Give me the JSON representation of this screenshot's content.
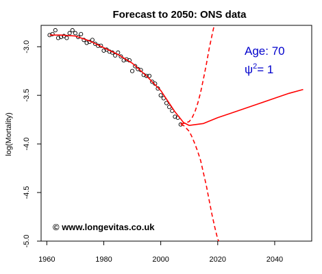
{
  "chart_data": {
    "type": "line",
    "title": "Forecast to 2050: ONS data",
    "xlabel": "",
    "ylabel": "log(Mortality)",
    "xlim": [
      1958,
      2053
    ],
    "ylim": [
      -5.0,
      -2.78
    ],
    "x_ticks": [
      1960,
      1980,
      2000,
      2020,
      2040
    ],
    "y_ticks": [
      -3.0,
      -3.5,
      -4.0,
      -4.5,
      -5.0
    ],
    "y_tick_labels": [
      "-3.0",
      "-3.5",
      "-4.0",
      "-4.5",
      "-5.0"
    ],
    "grid": false,
    "annotations": {
      "age_label": "Age: 70",
      "psi_symbol": "ψ",
      "psi_exponent": "2",
      "psi_value": "= 1",
      "credit": "© www.longevitas.co.uk"
    },
    "series": [
      {
        "style": "points",
        "x": [
          1961,
          1962,
          1963,
          1964,
          1965,
          1966,
          1967,
          1968,
          1969,
          1970,
          1971,
          1972,
          1973,
          1974,
          1975,
          1976,
          1977,
          1978,
          1979,
          1980,
          1981,
          1982,
          1983,
          1984,
          1985,
          1986,
          1987,
          1988,
          1989,
          1990,
          1991,
          1992,
          1993,
          1994,
          1995,
          1996,
          1997,
          1998,
          1999,
          2000,
          2001,
          2002,
          2003,
          2004,
          2005,
          2006,
          2007
        ],
        "y": [
          -2.88,
          -2.87,
          -2.83,
          -2.91,
          -2.9,
          -2.89,
          -2.91,
          -2.86,
          -2.83,
          -2.86,
          -2.9,
          -2.87,
          -2.93,
          -2.96,
          -2.95,
          -2.93,
          -2.97,
          -2.99,
          -2.99,
          -3.04,
          -3.03,
          -3.05,
          -3.06,
          -3.09,
          -3.06,
          -3.1,
          -3.14,
          -3.13,
          -3.14,
          -3.25,
          -3.2,
          -3.23,
          -3.24,
          -3.29,
          -3.3,
          -3.3,
          -3.36,
          -3.38,
          -3.43,
          -3.5,
          -3.53,
          -3.58,
          -3.62,
          -3.66,
          -3.72,
          -3.73,
          -3.8
        ]
      },
      {
        "style": "solid",
        "x": [
          1961,
          1965,
          1970,
          1975,
          1980,
          1985,
          1990,
          1995,
          2000,
          2005,
          2008,
          2010,
          2015,
          2020,
          2025,
          2030,
          2035,
          2040,
          2045,
          2050
        ],
        "y": [
          -2.88,
          -2.88,
          -2.89,
          -2.94,
          -3.01,
          -3.08,
          -3.17,
          -3.3,
          -3.45,
          -3.67,
          -3.78,
          -3.81,
          -3.79,
          -3.73,
          -3.68,
          -3.63,
          -3.58,
          -3.53,
          -3.48,
          -3.44
        ]
      },
      {
        "style": "dashed",
        "x": [
          2007,
          2008,
          2009,
          2010,
          2011,
          2012,
          2013,
          2014,
          2015,
          2016,
          2017,
          2018,
          2019
        ],
        "y": [
          -3.79,
          -3.79,
          -3.78,
          -3.77,
          -3.73,
          -3.67,
          -3.58,
          -3.47,
          -3.33,
          -3.18,
          -3.02,
          -2.88,
          -2.75
        ]
      },
      {
        "style": "dashed",
        "x": [
          2007,
          2008,
          2009,
          2010,
          2011,
          2012,
          2013,
          2014,
          2015,
          2016,
          2017,
          2018,
          2019,
          2020,
          2021
        ],
        "y": [
          -3.8,
          -3.81,
          -3.84,
          -3.87,
          -3.93,
          -4.0,
          -4.08,
          -4.17,
          -4.3,
          -4.43,
          -4.58,
          -4.73,
          -4.86,
          -4.98,
          -5.03
        ]
      }
    ],
    "colors": {
      "forecast": "#ff0000",
      "points": "#000000",
      "annotation": "#0000cc"
    }
  }
}
